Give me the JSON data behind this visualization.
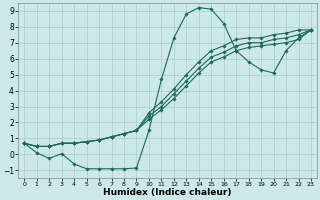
{
  "xlabel": "Humidex (Indice chaleur)",
  "bg_color": "#cce8e8",
  "grid_color": "#b0d0d0",
  "line_color": "#1a6b5a",
  "xlim": [
    -0.5,
    23.5
  ],
  "ylim": [
    -1.5,
    9.5
  ],
  "xticks": [
    0,
    1,
    2,
    3,
    4,
    5,
    6,
    7,
    8,
    9,
    10,
    11,
    12,
    13,
    14,
    15,
    16,
    17,
    18,
    19,
    20,
    21,
    22,
    23
  ],
  "yticks": [
    -1,
    0,
    1,
    2,
    3,
    4,
    5,
    6,
    7,
    8,
    9
  ],
  "lines": [
    {
      "x": [
        0,
        1,
        2,
        3,
        4,
        5,
        6,
        7,
        8,
        9,
        10,
        11,
        12,
        13,
        14,
        15,
        16,
        17,
        18,
        19,
        20,
        21,
        22,
        23
      ],
      "y": [
        0.7,
        0.1,
        -0.25,
        0.05,
        -0.6,
        -0.9,
        -0.9,
        -0.9,
        -0.9,
        -0.85,
        1.5,
        4.7,
        7.3,
        8.8,
        9.2,
        9.1,
        8.2,
        6.5,
        5.8,
        5.3,
        5.1,
        6.5,
        7.3,
        7.8
      ]
    },
    {
      "x": [
        0,
        1,
        2,
        3,
        4,
        5,
        6,
        7,
        8,
        9,
        10,
        11,
        12,
        13,
        14,
        15,
        16,
        17,
        18,
        19,
        20,
        21,
        22,
        23
      ],
      "y": [
        0.7,
        0.5,
        0.5,
        0.7,
        0.7,
        0.8,
        0.9,
        1.1,
        1.3,
        1.5,
        2.6,
        3.3,
        4.1,
        5.0,
        5.8,
        6.5,
        6.8,
        7.2,
        7.3,
        7.3,
        7.5,
        7.6,
        7.8,
        7.8
      ]
    },
    {
      "x": [
        0,
        1,
        2,
        3,
        4,
        5,
        6,
        7,
        8,
        9,
        10,
        11,
        12,
        13,
        14,
        15,
        16,
        17,
        18,
        19,
        20,
        21,
        22,
        23
      ],
      "y": [
        0.7,
        0.5,
        0.5,
        0.7,
        0.7,
        0.8,
        0.9,
        1.1,
        1.3,
        1.5,
        2.4,
        3.0,
        3.8,
        4.6,
        5.4,
        6.1,
        6.4,
        6.8,
        7.0,
        7.0,
        7.2,
        7.3,
        7.5,
        7.8
      ]
    },
    {
      "x": [
        0,
        1,
        2,
        3,
        4,
        5,
        6,
        7,
        8,
        9,
        10,
        11,
        12,
        13,
        14,
        15,
        16,
        17,
        18,
        19,
        20,
        21,
        22,
        23
      ],
      "y": [
        0.7,
        0.5,
        0.5,
        0.7,
        0.7,
        0.8,
        0.9,
        1.1,
        1.3,
        1.5,
        2.2,
        2.8,
        3.5,
        4.3,
        5.1,
        5.8,
        6.1,
        6.5,
        6.7,
        6.8,
        6.9,
        7.0,
        7.2,
        7.8
      ]
    }
  ]
}
